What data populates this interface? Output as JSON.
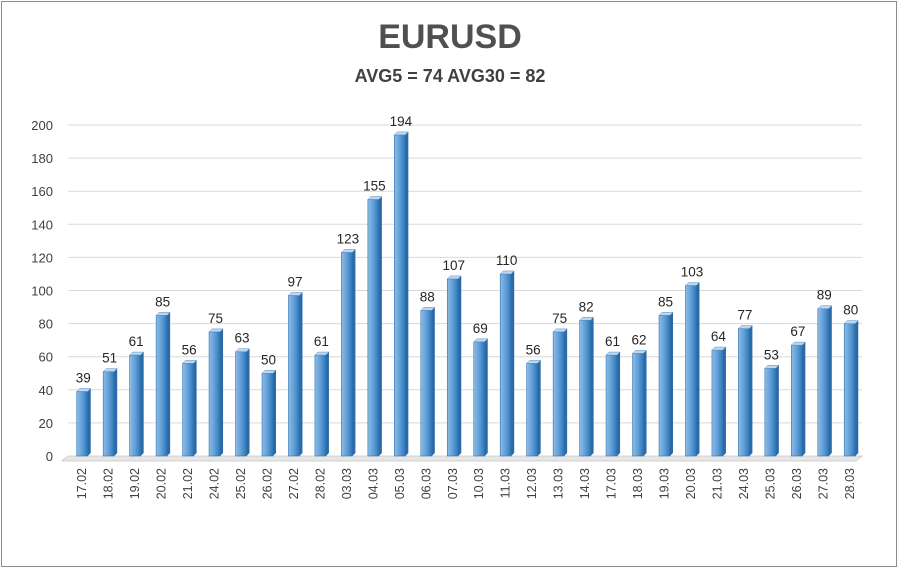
{
  "chart_data": {
    "type": "bar",
    "title": "EURUSD",
    "subtitle": "AVG5 = 74 AVG30 = 82",
    "categories": [
      "17.02",
      "18.02",
      "19.02",
      "20.02",
      "21.02",
      "24.02",
      "25.02",
      "26.02",
      "27.02",
      "28.02",
      "03.03",
      "04.03",
      "05.03",
      "06.03",
      "07.03",
      "10.03",
      "11.03",
      "12.03",
      "13.03",
      "14.03",
      "17.03",
      "18.03",
      "19.03",
      "20.03",
      "21.03",
      "24.03",
      "25.03",
      "26.03",
      "27.03",
      "28.03"
    ],
    "values": [
      39,
      51,
      61,
      85,
      56,
      75,
      63,
      50,
      97,
      61,
      123,
      155,
      194,
      88,
      107,
      69,
      110,
      56,
      75,
      82,
      61,
      62,
      85,
      103,
      64,
      77,
      53,
      67,
      89,
      80
    ],
    "ylim": [
      0,
      200
    ],
    "yticks": [
      "0",
      "20",
      "40",
      "60",
      "80",
      "100",
      "120",
      "140",
      "160",
      "180",
      "200"
    ],
    "xlabel": "",
    "ylabel": "",
    "grid": true,
    "bar_color": "#5b9bd5",
    "bar_dark": "#2e75b6"
  }
}
